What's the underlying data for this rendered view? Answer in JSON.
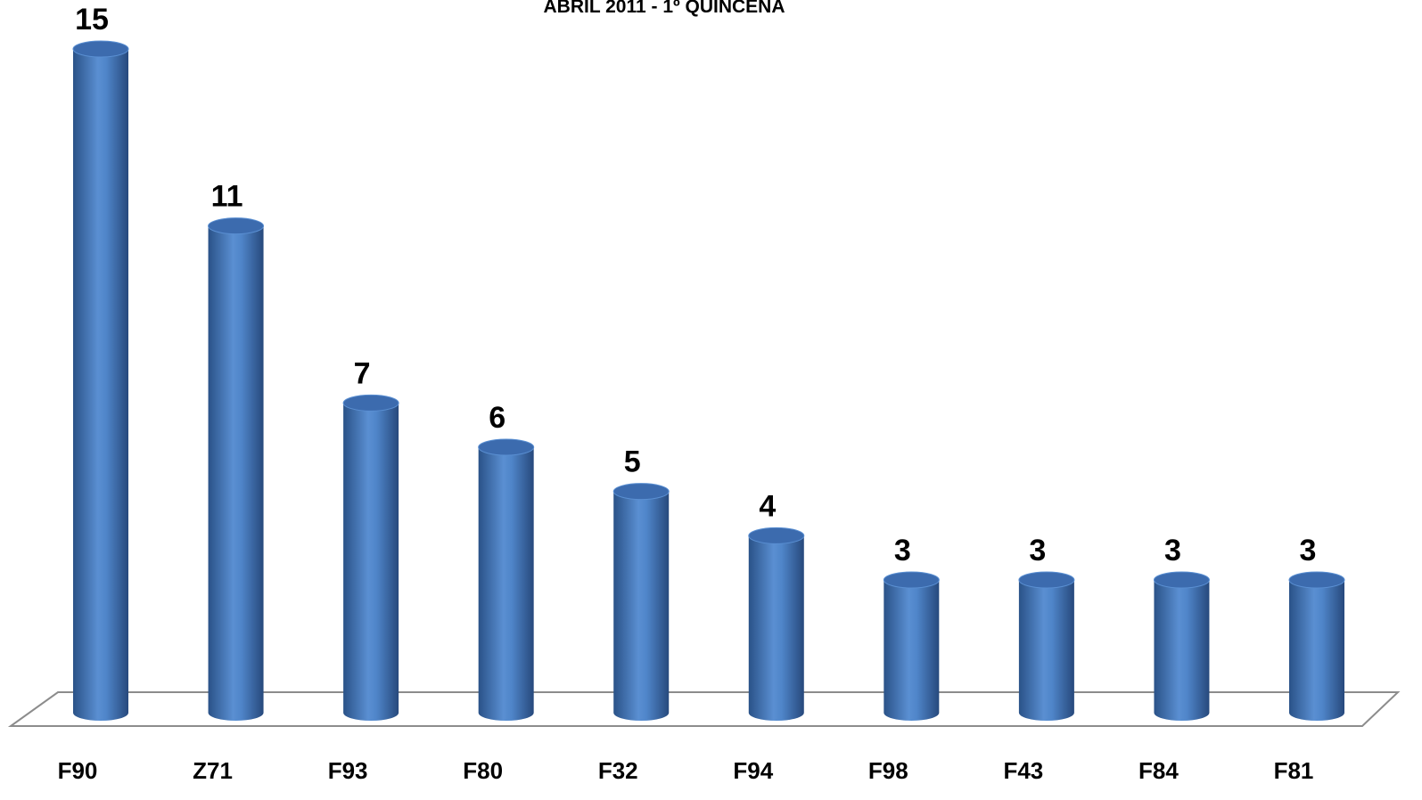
{
  "chart_data": {
    "type": "bar",
    "title": "ABRIL 2011 - 1º QUINCENA",
    "categories": [
      "F90",
      "Z71",
      "F93",
      "F80",
      "F32",
      "F94",
      "F98",
      "F43",
      "F84",
      "F81"
    ],
    "values": [
      15,
      11,
      7,
      6,
      5,
      4,
      3,
      3,
      3,
      3
    ],
    "color": "#4f81bd"
  }
}
